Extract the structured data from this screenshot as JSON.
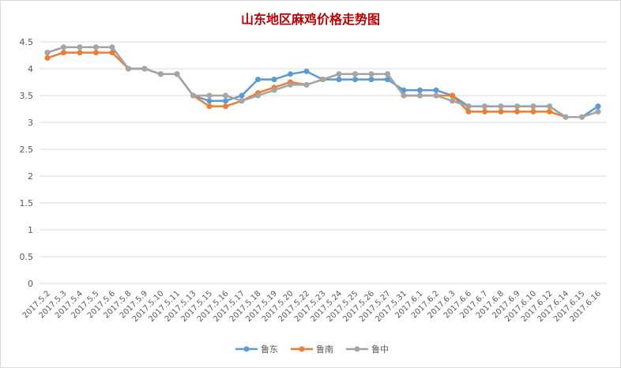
{
  "chart_data": {
    "type": "line",
    "title": "山东地区麻鸡价格走势图",
    "xlabel": "",
    "ylabel": "",
    "ylim": [
      0,
      4.5
    ],
    "ytick_step": 0.5,
    "yticks": [
      "0",
      "0.5",
      "1",
      "1.5",
      "2",
      "2.5",
      "3",
      "3.5",
      "4",
      "4.5"
    ],
    "grid": true,
    "legend_position": "bottom",
    "categories": [
      "2017.5.2",
      "2017.5.3",
      "2017.5.4",
      "2017.5.5",
      "2017.5.6",
      "2017.5.8",
      "2017.5.9",
      "2017.5.10",
      "2017.5.11",
      "2017.5.13",
      "2017.5.15",
      "2017.5.16",
      "2017.5.17",
      "2017.5.18",
      "2017.5.19",
      "2017.5.20",
      "2017.5.22",
      "2017.5.23",
      "2017.5.24",
      "2017.5.25",
      "2017.5.26",
      "2017.5.27",
      "2017.5.31",
      "2017.6.1",
      "2017.6.2",
      "2017.6.3",
      "2017.6.6",
      "2017.6.7",
      "2017.6.8",
      "2017.6.9",
      "2017.6.10",
      "2017.6.12",
      "2017.6.14",
      "2017.6.15",
      "2017.6.16"
    ],
    "series": [
      {
        "name": "鲁东",
        "color": "#5B9BD5",
        "values": [
          4.3,
          4.4,
          4.4,
          4.4,
          4.4,
          4.0,
          4.0,
          3.9,
          3.9,
          3.5,
          3.4,
          3.4,
          3.5,
          3.8,
          3.8,
          3.9,
          3.95,
          3.8,
          3.8,
          3.8,
          3.8,
          3.8,
          3.6,
          3.6,
          3.6,
          3.5,
          3.3,
          3.3,
          3.3,
          3.3,
          3.3,
          3.3,
          3.1,
          3.1,
          3.3
        ]
      },
      {
        "name": "鲁南",
        "color": "#ED7D31",
        "values": [
          4.2,
          4.3,
          4.3,
          4.3,
          4.3,
          4.0,
          4.0,
          3.9,
          3.9,
          3.5,
          3.3,
          3.3,
          3.4,
          3.55,
          3.65,
          3.75,
          3.7,
          3.8,
          3.9,
          3.9,
          3.9,
          3.9,
          3.5,
          3.5,
          3.5,
          3.5,
          3.2,
          3.2,
          3.2,
          3.2,
          3.2,
          3.2,
          3.1,
          3.1,
          3.2
        ]
      },
      {
        "name": "鲁中",
        "color": "#A5A5A5",
        "values": [
          4.3,
          4.4,
          4.4,
          4.4,
          4.4,
          4.0,
          4.0,
          3.9,
          3.9,
          3.5,
          3.5,
          3.5,
          3.4,
          3.5,
          3.6,
          3.7,
          3.7,
          3.8,
          3.9,
          3.9,
          3.9,
          3.9,
          3.5,
          3.5,
          3.5,
          3.4,
          3.3,
          3.3,
          3.3,
          3.3,
          3.3,
          3.3,
          3.1,
          3.1,
          3.2
        ]
      }
    ]
  }
}
